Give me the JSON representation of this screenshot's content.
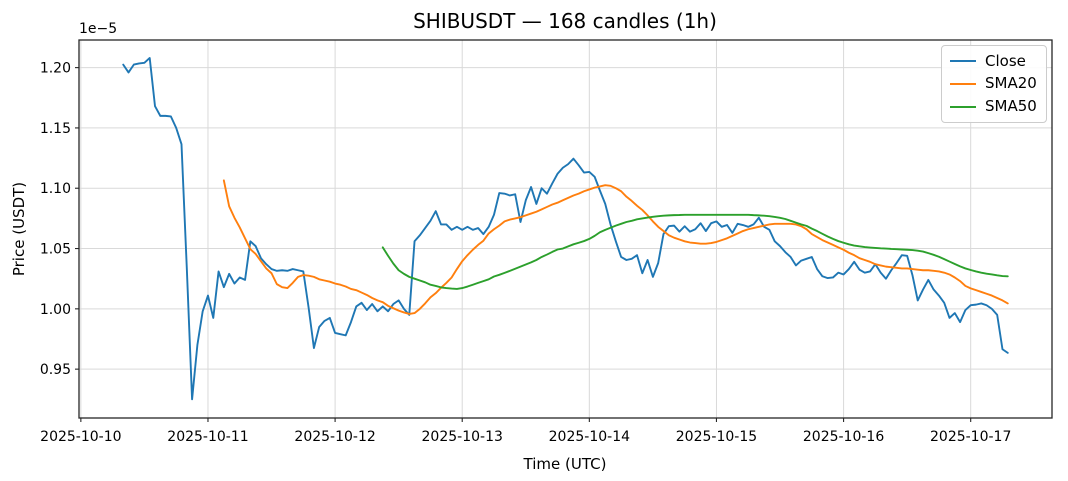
{
  "figure": {
    "title": "SHIBUSDT — 168 candles (1h)"
  },
  "axes": {
    "xlabel": "Time (UTC)",
    "ylabel": "Price (USDT)",
    "offset_text": "1e−5"
  },
  "legend": {
    "position": "upper right",
    "entries": [
      {
        "label": "Close",
        "color": "#1f77b4"
      },
      {
        "label": "SMA20",
        "color": "#ff7f0e"
      },
      {
        "label": "SMA50",
        "color": "#2ca02c"
      }
    ]
  },
  "chart_data": {
    "type": "line",
    "title": "SHIBUSDT — 168 candles (1h)",
    "xlabel": "Time (UTC)",
    "ylabel": "Price (USDT)",
    "y_scale_factor": "1e-5",
    "grid": true,
    "legend_position": "upper right",
    "n_points": 168,
    "x_interval_hours": 1,
    "x_start_time_utc": "2025-10-10 08:00",
    "x_start_hour_of_day": 8,
    "x_tick_labels": [
      "2025-10-10",
      "2025-10-11",
      "2025-10-12",
      "2025-10-13",
      "2025-10-14",
      "2025-10-15",
      "2025-10-16",
      "2025-10-17"
    ],
    "x_tick_day_index": [
      0,
      1,
      2,
      3,
      4,
      5,
      6,
      7
    ],
    "y_ticks": [
      0.95,
      1.0,
      1.05,
      1.1,
      1.15,
      1.2
    ],
    "y_tick_labels": [
      "0.95",
      "1.00",
      "1.05",
      "1.10",
      "1.15",
      "1.20"
    ],
    "ylim": [
      0.9095,
      1.2229
    ],
    "series": [
      {
        "name": "Close",
        "color": "#1f77b4",
        "start_index": 0,
        "values": [
          1.2025,
          1.196,
          1.2025,
          1.2035,
          1.204,
          1.208,
          1.168,
          1.16,
          1.16,
          1.1595,
          1.15,
          1.1365,
          1.034,
          0.925,
          0.97,
          0.998,
          1.011,
          0.9925,
          1.031,
          1.018,
          1.029,
          1.021,
          1.026,
          1.024,
          1.056,
          1.052,
          1.042,
          1.037,
          1.033,
          1.0315,
          1.032,
          1.0315,
          1.033,
          1.032,
          1.031,
          1.001,
          0.9675,
          0.985,
          0.99,
          0.9925,
          0.98,
          0.979,
          0.978,
          0.989,
          1.002,
          1.005,
          0.999,
          1.004,
          0.998,
          1.002,
          0.998,
          1.004,
          1.007,
          1.0,
          0.995,
          1.056,
          1.061,
          1.067,
          1.073,
          1.081,
          1.07,
          1.07,
          1.0655,
          1.068,
          1.0655,
          1.068,
          1.0655,
          1.067,
          1.062,
          1.068,
          1.078,
          1.096,
          1.0955,
          1.094,
          1.095,
          1.072,
          1.09,
          1.101,
          1.087,
          1.1,
          1.0955,
          1.104,
          1.112,
          1.117,
          1.12,
          1.1245,
          1.119,
          1.113,
          1.1135,
          1.1095,
          1.098,
          1.087,
          1.07,
          1.056,
          1.043,
          1.0405,
          1.0415,
          1.0445,
          1.0295,
          1.0405,
          1.0265,
          1.038,
          1.062,
          1.0685,
          1.069,
          1.064,
          1.0685,
          1.064,
          1.066,
          1.071,
          1.0645,
          1.071,
          1.0725,
          1.068,
          1.0695,
          1.063,
          1.0705,
          1.0695,
          1.068,
          1.07,
          1.0755,
          1.068,
          1.0655,
          1.056,
          1.052,
          1.047,
          1.043,
          1.036,
          1.04,
          1.0415,
          1.043,
          1.033,
          1.027,
          1.0255,
          1.026,
          1.03,
          1.0285,
          1.033,
          1.039,
          1.0325,
          1.03,
          1.031,
          1.037,
          1.03,
          1.025,
          1.032,
          1.038,
          1.0445,
          1.044,
          1.028,
          1.007,
          1.016,
          1.024,
          1.016,
          1.011,
          1.005,
          0.9925,
          0.9965,
          0.989,
          0.999,
          1.003,
          1.0035,
          1.0045,
          1.003,
          1.0,
          0.995,
          0.9665,
          0.9635
        ]
      },
      {
        "name": "SMA20",
        "color": "#ff7f0e",
        "start_index": 19,
        "values": [
          1.1065,
          1.085,
          1.0755,
          1.0675,
          1.0585,
          1.0495,
          1.0455,
          1.0395,
          1.0335,
          1.0295,
          1.0205,
          1.018,
          1.0172,
          1.0215,
          1.0265,
          1.028,
          1.0275,
          1.0265,
          1.0245,
          1.0235,
          1.0225,
          1.021,
          1.02,
          1.0185,
          1.0165,
          1.0155,
          1.0135,
          1.0115,
          1.009,
          1.007,
          1.0055,
          1.0025,
          1.0005,
          0.9985,
          0.997,
          0.9958,
          0.9965,
          1.0,
          1.0045,
          1.0095,
          1.013,
          1.0175,
          1.0215,
          1.026,
          1.033,
          1.0395,
          1.0445,
          1.049,
          1.053,
          1.0565,
          1.0625,
          1.066,
          1.069,
          1.0725,
          1.074,
          1.075,
          1.076,
          1.0775,
          1.079,
          1.0805,
          1.0825,
          1.0845,
          1.0865,
          1.088,
          1.09,
          1.092,
          1.094,
          1.0955,
          1.0975,
          1.099,
          1.1005,
          1.1015,
          1.1025,
          1.102,
          1.1,
          1.0975,
          1.093,
          1.0895,
          1.0855,
          1.082,
          1.0775,
          1.0725,
          1.068,
          1.0645,
          1.061,
          1.059,
          1.0575,
          1.056,
          1.055,
          1.0545,
          1.054,
          1.054,
          1.0545,
          1.0555,
          1.057,
          1.0585,
          1.0605,
          1.0625,
          1.0645,
          1.066,
          1.067,
          1.068,
          1.069,
          1.07,
          1.0705,
          1.0705,
          1.0705,
          1.0705,
          1.07,
          1.0685,
          1.066,
          1.062,
          1.0595,
          1.057,
          1.055,
          1.053,
          1.051,
          1.049,
          1.0465,
          1.0445,
          1.042,
          1.0405,
          1.039,
          1.037,
          1.036,
          1.035,
          1.0345,
          1.034,
          1.0335,
          1.0335,
          1.033,
          1.0325,
          1.032,
          1.032,
          1.0315,
          1.031,
          1.03,
          1.0285,
          1.026,
          1.023,
          1.019,
          1.017,
          1.0155,
          1.014,
          1.0125,
          1.011,
          1.009,
          1.007,
          1.0045
        ]
      },
      {
        "name": "SMA50",
        "color": "#2ca02c",
        "start_index": 49,
        "values": [
          1.051,
          1.044,
          1.0375,
          1.032,
          1.029,
          1.0265,
          1.025,
          1.0235,
          1.022,
          1.02,
          1.019,
          1.0178,
          1.0172,
          1.0168,
          1.0165,
          1.0172,
          1.0185,
          1.02,
          1.0215,
          1.023,
          1.0245,
          1.0268,
          1.0282,
          1.0298,
          1.0315,
          1.0332,
          1.035,
          1.0368,
          1.0385,
          1.0405,
          1.043,
          1.045,
          1.0472,
          1.0492,
          1.05,
          1.0518,
          1.0535,
          1.0548,
          1.0562,
          1.058,
          1.0605,
          1.0635,
          1.0655,
          1.0672,
          1.069,
          1.0705,
          1.072,
          1.073,
          1.0742,
          1.075,
          1.0757,
          1.0763,
          1.0768,
          1.0772,
          1.0775,
          1.0777,
          1.0778,
          1.078,
          1.078,
          1.078,
          1.078,
          1.078,
          1.078,
          1.078,
          1.078,
          1.078,
          1.078,
          1.078,
          1.078,
          1.078,
          1.0777,
          1.0775,
          1.0772,
          1.0768,
          1.0762,
          1.0755,
          1.0745,
          1.073,
          1.0715,
          1.07,
          1.0688,
          1.0665,
          1.0645,
          1.0622,
          1.06,
          1.058,
          1.0562,
          1.0548,
          1.0535,
          1.0525,
          1.0518,
          1.0512,
          1.0508,
          1.0505,
          1.0502,
          1.05,
          1.0497,
          1.0495,
          1.0492,
          1.049,
          1.0487,
          1.0482,
          1.0475,
          1.0462,
          1.0448,
          1.0432,
          1.0412,
          1.0392,
          1.0372,
          1.0352,
          1.0335,
          1.0322,
          1.031,
          1.03,
          1.0292,
          1.0285,
          1.0278,
          1.0272,
          1.027
        ]
      }
    ]
  }
}
